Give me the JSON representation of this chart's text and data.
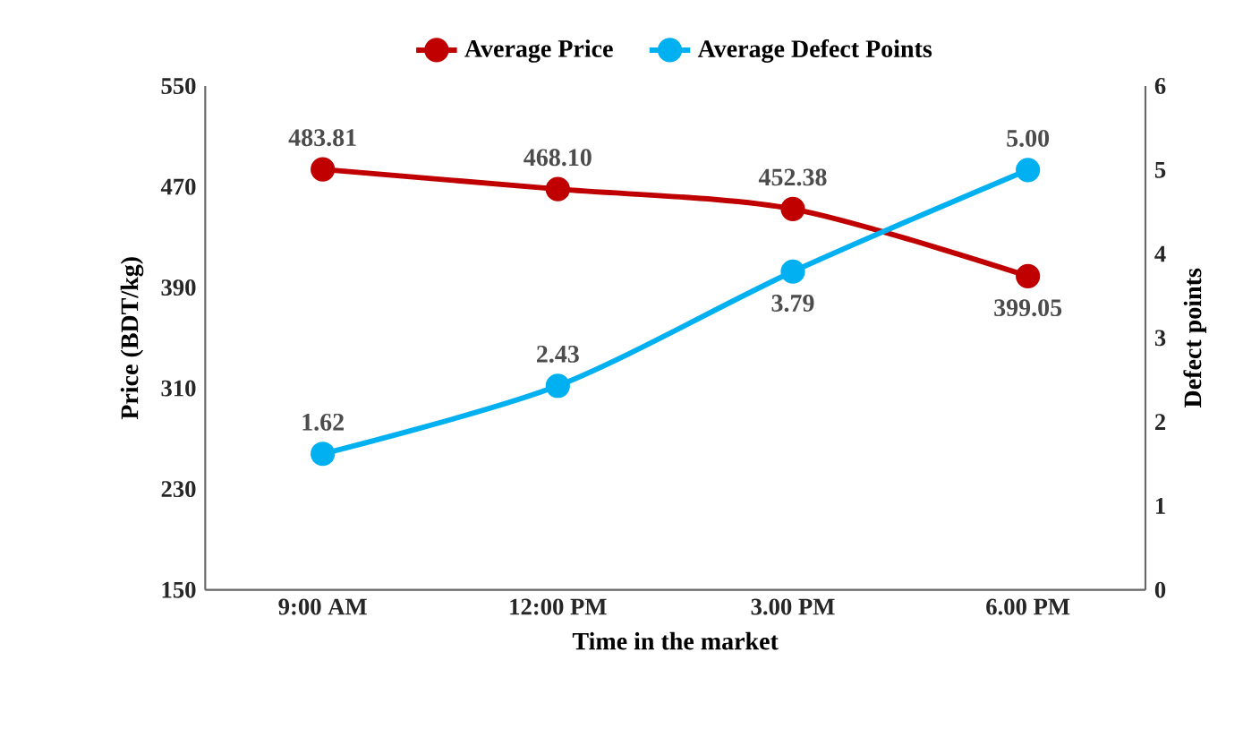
{
  "chart_data": {
    "type": "line",
    "xlabel": "Time in the market",
    "ylabel": "Price (BDT/kg)",
    "y2label": "Defect points",
    "categories": [
      "9:00 AM",
      "12:00 PM",
      "3.00 PM",
      "6.00 PM"
    ],
    "series": [
      {
        "name": "Average Price",
        "color": "#c00000",
        "values": [
          483.81,
          468.1,
          452.38,
          399.05
        ],
        "value_labels": [
          "483.81",
          "468.10",
          "452.38",
          "399.05"
        ]
      },
      {
        "name": "Average Defect Points",
        "color": "#00b0f0",
        "axis": "y2",
        "values": [
          1.62,
          2.43,
          3.79,
          5.0
        ],
        "value_labels": [
          "1.62",
          "2.43",
          "3.79",
          "5.00"
        ]
      }
    ],
    "ylim": [
      150,
      550
    ],
    "yticks": [
      150,
      230,
      310,
      390,
      470,
      550
    ],
    "y2lim": [
      0,
      6
    ],
    "y2ticks": [
      0,
      1,
      2,
      3,
      4,
      5,
      6
    ],
    "marker": "circle",
    "line_style": "solid",
    "legend": "top",
    "grid": false
  }
}
